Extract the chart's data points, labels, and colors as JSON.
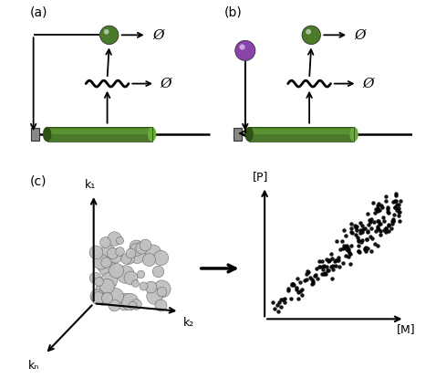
{
  "bg_color": "#ffffff",
  "green_color": "#4a7a2a",
  "green_light": "#6aaa3a",
  "green_dark": "#2d5016",
  "green_highlight": "#7acc4a",
  "purple_color": "#8844aa",
  "arrow_color": "#000000",
  "label_a": "(a)",
  "label_b": "(b)",
  "label_c": "(c)",
  "k1_label": "k₁",
  "k2_label": "k₂",
  "kn_label": "kₙ",
  "P_label": "[P]",
  "M_label": "[M]",
  "empty_set": "Ø",
  "fig_width": 4.78,
  "fig_height": 4.26,
  "dpi": 100
}
